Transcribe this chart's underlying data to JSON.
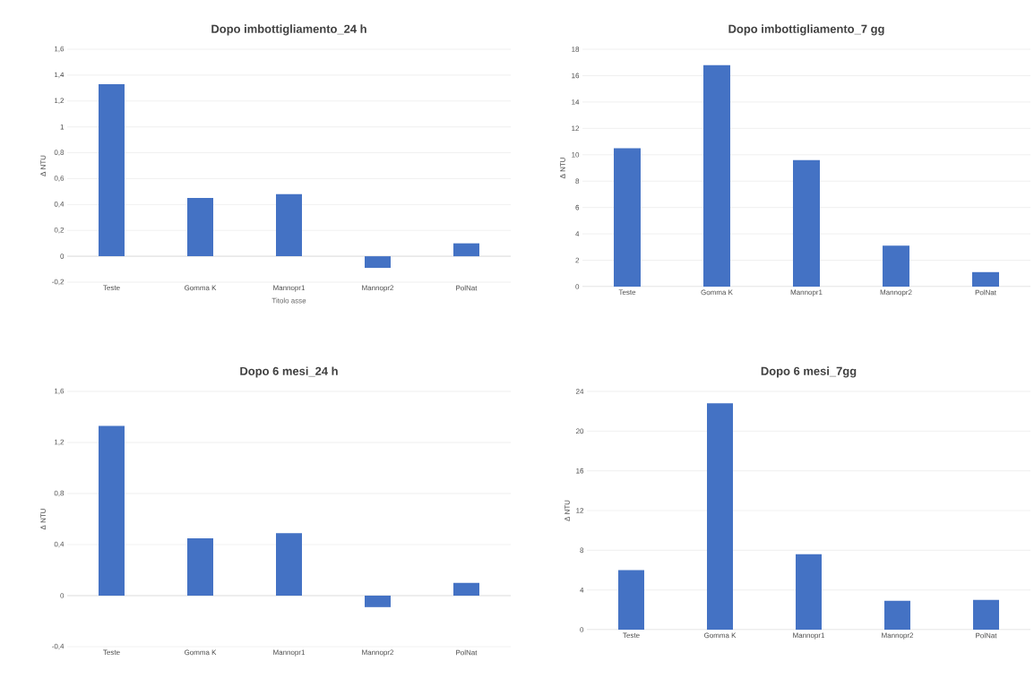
{
  "chart_data": [
    {
      "type": "bar",
      "title": "Dopo imbottigliamento_24 h",
      "ylabel": "Δ NTU",
      "xlabel": "Titolo asse",
      "categories": [
        "Teste",
        "Gomma K",
        "Mannopr1",
        "Mannopr2",
        "PolNat"
      ],
      "values": [
        1.33,
        0.45,
        0.48,
        -0.09,
        0.1
      ],
      "color": "#4472c4",
      "ylim": [
        -0.2,
        1.6
      ],
      "yticks": [
        {
          "value": -0.2,
          "label": "-0,2"
        },
        0,
        {
          "value": 0.2,
          "label": "0,2"
        },
        {
          "value": 0.4,
          "label": "0,4"
        },
        {
          "value": 0.6,
          "label": "0,6"
        },
        {
          "value": 0.8,
          "label": "0,8"
        },
        1,
        {
          "value": 1.2,
          "label": "1,2"
        },
        {
          "value": 1.4,
          "label": "1,4"
        },
        {
          "value": 1.6,
          "label": "1,6"
        }
      ],
      "grid": "y"
    },
    {
      "type": "bar",
      "title": "Dopo imbottigliamento_7 gg",
      "ylabel": "Δ NTU",
      "categories": [
        "Teste",
        "Gomma K",
        "Mannopr1",
        "Mannopr2",
        "PolNat"
      ],
      "values": [
        10.5,
        16.8,
        9.6,
        3.1,
        1.1
      ],
      "color": "#4472c4",
      "ylim": [
        0,
        18
      ],
      "yticks": [
        0,
        2,
        4,
        6,
        8,
        10,
        12,
        14,
        16,
        18
      ],
      "grid": "y"
    },
    {
      "type": "bar",
      "title": "Dopo 6 mesi_24 h",
      "ylabel": "Δ NTU",
      "categories": [
        "Teste",
        "Gomma K",
        "Mannopr1",
        "Mannopr2",
        "PolNat"
      ],
      "values": [
        1.33,
        0.45,
        0.49,
        -0.09,
        0.1
      ],
      "color": "#4472c4",
      "ylim": [
        -0.4,
        1.6
      ],
      "yticks": [
        {
          "value": -0.4,
          "label": "-0,4"
        },
        0,
        {
          "value": 0.4,
          "label": "0,4"
        },
        {
          "value": 0.8,
          "label": "0,8"
        },
        {
          "value": 1.2,
          "label": "1,2"
        },
        {
          "value": 1.6,
          "label": "1,6"
        }
      ],
      "grid": "y"
    },
    {
      "type": "bar",
      "title": "Dopo 6 mesi_7gg",
      "ylabel": "Δ NTU",
      "categories": [
        "Teste",
        "Gomma K",
        "Mannopr1",
        "Mannopr2",
        "PolNat"
      ],
      "values": [
        6.0,
        22.8,
        7.6,
        2.9,
        3.0
      ],
      "color": "#4472c4",
      "ylim": [
        0,
        24
      ],
      "yticks": [
        0,
        4,
        8,
        12,
        16,
        20,
        24
      ],
      "grid": "y"
    }
  ]
}
